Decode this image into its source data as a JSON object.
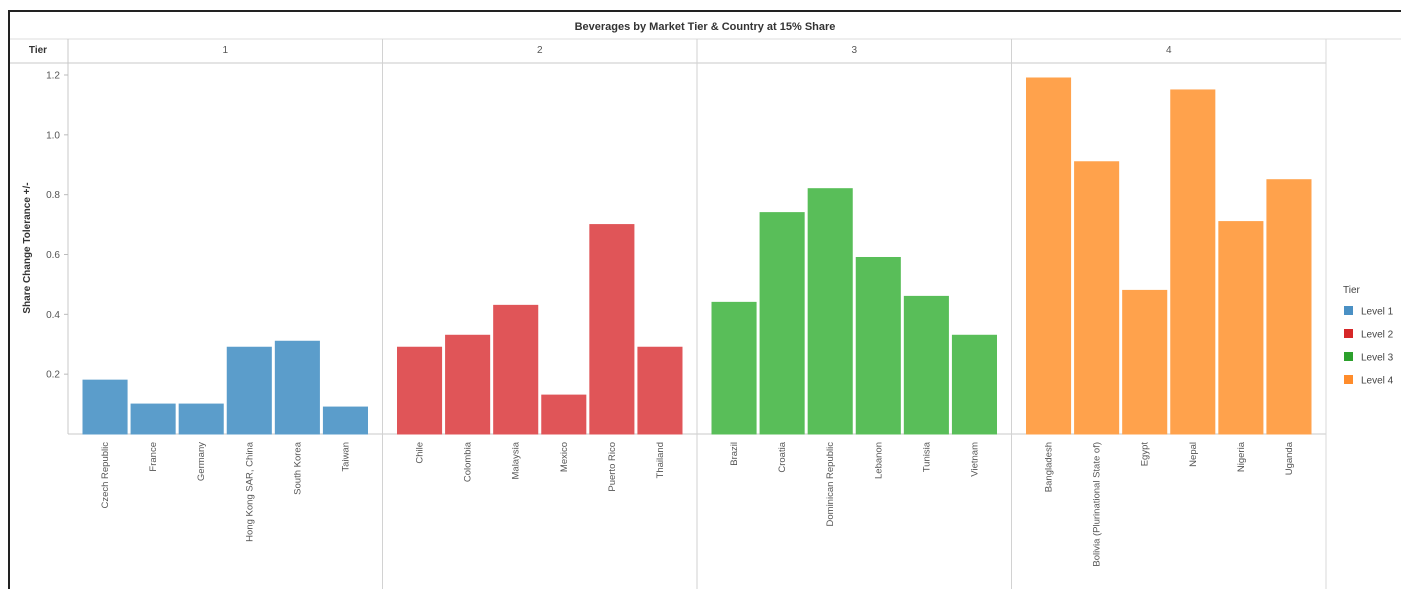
{
  "chart_data": {
    "type": "bar",
    "title": "Beverages by Market Tier & Country at 15% Share",
    "column_header": "Tier",
    "ylabel": "Share Change Tolerance +/-",
    "ylim": [
      0,
      1.2
    ],
    "yticks": [
      0.2,
      0.4,
      0.6,
      0.8,
      1.0,
      1.2
    ],
    "ytick_labels": [
      "0.2",
      "0.4",
      "0.6",
      "0.8",
      "1.0",
      "1.2"
    ],
    "grid": false,
    "legend": {
      "title": "Tier",
      "placement": "right",
      "items": [
        {
          "label": "Level 1",
          "color": "#4A90C4"
        },
        {
          "label": "Level 2",
          "color": "#D62728"
        },
        {
          "label": "Level 3",
          "color": "#2CA02C"
        },
        {
          "label": "Level 4",
          "color": "#FF8C2B"
        }
      ]
    },
    "panels": [
      {
        "label": "1",
        "color": "#5B9DCB",
        "categories": [
          "Czech Republic",
          "France",
          "Germany",
          "Hong Kong SAR, China",
          "South Korea",
          "Taiwan"
        ],
        "values": [
          0.18,
          0.1,
          0.1,
          0.29,
          0.31,
          0.09
        ]
      },
      {
        "label": "2",
        "color": "#E05558",
        "categories": [
          "Chile",
          "Colombia",
          "Malaysia",
          "Mexico",
          "Puerto Rico",
          "Thailand"
        ],
        "values": [
          0.29,
          0.33,
          0.43,
          0.13,
          0.7,
          0.29
        ]
      },
      {
        "label": "3",
        "color": "#59BE59",
        "categories": [
          "Brazil",
          "Croatia",
          "Dominican Republic",
          "Lebanon",
          "Tunisia",
          "Vietnam"
        ],
        "values": [
          0.44,
          0.74,
          0.82,
          0.59,
          0.46,
          0.33
        ]
      },
      {
        "label": "4",
        "color": "#FFA24C",
        "categories": [
          "Bangladesh",
          "Bolivia (Plurinational State of)",
          "Egypt",
          "Nepal",
          "Nigeria",
          "Uganda"
        ],
        "values": [
          1.19,
          0.91,
          0.48,
          1.15,
          0.71,
          0.85
        ]
      }
    ]
  }
}
